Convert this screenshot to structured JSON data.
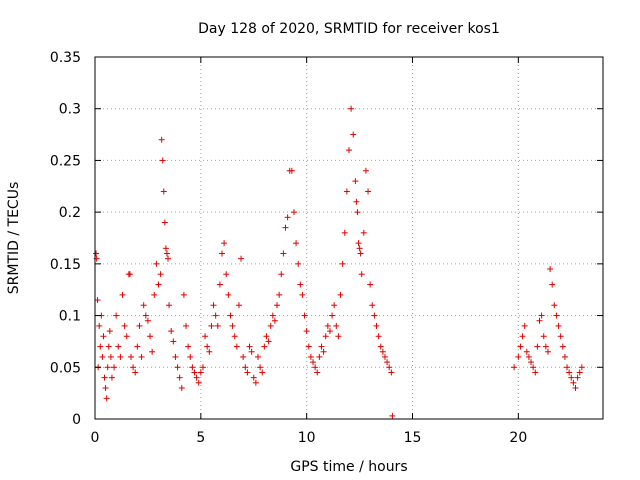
{
  "chart_data": {
    "type": "scatter",
    "title": "Day 128 of 2020, SRMTID for receiver kos1",
    "xlabel": "GPS time / hours",
    "ylabel": "SRMTID / TECUs",
    "xlim": [
      0,
      24
    ],
    "ylim": [
      0,
      0.35
    ],
    "xticks": [
      0,
      5,
      10,
      15,
      20
    ],
    "xtick_labels": [
      "0",
      "5",
      "10",
      "15",
      "20"
    ],
    "yticks": [
      0,
      0.05,
      0.1,
      0.15,
      0.2,
      0.25,
      0.3,
      0.35
    ],
    "ytick_labels": [
      "0",
      "0.05",
      "0.1",
      "0.15",
      "0.2",
      "0.25",
      "0.3",
      "0.35"
    ],
    "grid": true,
    "marker": "+",
    "series_color": "#e00000",
    "series": [
      {
        "name": "kos1",
        "x": [
          0.05,
          0.08,
          0.12,
          0.15,
          0.2,
          0.25,
          0.3,
          0.35,
          0.4,
          0.45,
          0.5,
          0.55,
          0.6,
          0.65,
          0.7,
          0.75,
          0.8,
          0.9,
          1.0,
          1.1,
          1.2,
          1.3,
          1.4,
          1.5,
          1.6,
          1.65,
          1.7,
          1.8,
          1.9,
          2.0,
          2.1,
          2.2,
          2.3,
          2.4,
          2.5,
          2.6,
          2.7,
          2.8,
          2.9,
          3.0,
          3.1,
          3.15,
          3.2,
          3.25,
          3.3,
          3.35,
          3.4,
          3.45,
          3.5,
          3.6,
          3.7,
          3.8,
          3.9,
          4.0,
          4.1,
          4.2,
          4.3,
          4.4,
          4.5,
          4.6,
          4.7,
          4.8,
          4.9,
          5.0,
          5.1,
          5.2,
          5.3,
          5.4,
          5.5,
          5.6,
          5.7,
          5.8,
          5.9,
          6.0,
          6.1,
          6.2,
          6.3,
          6.4,
          6.5,
          6.6,
          6.7,
          6.8,
          6.9,
          7.0,
          7.1,
          7.2,
          7.3,
          7.4,
          7.5,
          7.6,
          7.7,
          7.8,
          7.9,
          8.0,
          8.1,
          8.2,
          8.3,
          8.4,
          8.5,
          8.6,
          8.7,
          8.8,
          8.9,
          9.0,
          9.1,
          9.2,
          9.3,
          9.4,
          9.5,
          9.6,
          9.7,
          9.8,
          9.9,
          10.0,
          10.1,
          10.2,
          10.3,
          10.4,
          10.5,
          10.6,
          10.7,
          10.8,
          10.9,
          11.0,
          11.1,
          11.2,
          11.3,
          11.4,
          11.5,
          11.6,
          11.7,
          11.8,
          11.9,
          12.0,
          12.1,
          12.2,
          12.3,
          12.35,
          12.4,
          12.45,
          12.5,
          12.55,
          12.6,
          12.7,
          12.8,
          12.9,
          13.0,
          13.1,
          13.2,
          13.3,
          13.4,
          13.5,
          13.6,
          13.7,
          13.8,
          13.9,
          14.0,
          14.05,
          19.8,
          20.0,
          20.1,
          20.2,
          20.3,
          20.4,
          20.5,
          20.6,
          20.7,
          20.8,
          20.9,
          21.0,
          21.1,
          21.2,
          21.3,
          21.4,
          21.5,
          21.6,
          21.7,
          21.8,
          21.9,
          22.0,
          22.1,
          22.2,
          22.3,
          22.4,
          22.5,
          22.6,
          22.7,
          22.8,
          22.9,
          23.0
        ],
        "y": [
          0.16,
          0.155,
          0.115,
          0.05,
          0.09,
          0.07,
          0.1,
          0.06,
          0.08,
          0.04,
          0.03,
          0.02,
          0.05,
          0.07,
          0.085,
          0.06,
          0.04,
          0.05,
          0.1,
          0.07,
          0.06,
          0.12,
          0.09,
          0.08,
          0.14,
          0.14,
          0.06,
          0.05,
          0.045,
          0.07,
          0.09,
          0.06,
          0.11,
          0.1,
          0.095,
          0.08,
          0.065,
          0.12,
          0.15,
          0.13,
          0.14,
          0.27,
          0.25,
          0.22,
          0.19,
          0.165,
          0.16,
          0.155,
          0.11,
          0.085,
          0.075,
          0.06,
          0.05,
          0.04,
          0.03,
          0.12,
          0.09,
          0.07,
          0.06,
          0.05,
          0.045,
          0.04,
          0.035,
          0.045,
          0.05,
          0.08,
          0.07,
          0.065,
          0.09,
          0.11,
          0.1,
          0.09,
          0.13,
          0.16,
          0.17,
          0.14,
          0.12,
          0.1,
          0.09,
          0.08,
          0.07,
          0.11,
          0.155,
          0.06,
          0.05,
          0.045,
          0.07,
          0.065,
          0.04,
          0.035,
          0.06,
          0.05,
          0.045,
          0.07,
          0.08,
          0.075,
          0.09,
          0.1,
          0.095,
          0.11,
          0.12,
          0.14,
          0.16,
          0.185,
          0.195,
          0.24,
          0.24,
          0.2,
          0.17,
          0.15,
          0.13,
          0.12,
          0.1,
          0.085,
          0.07,
          0.06,
          0.055,
          0.05,
          0.045,
          0.06,
          0.07,
          0.065,
          0.08,
          0.09,
          0.085,
          0.1,
          0.11,
          0.09,
          0.08,
          0.12,
          0.15,
          0.18,
          0.22,
          0.26,
          0.3,
          0.275,
          0.23,
          0.21,
          0.2,
          0.17,
          0.165,
          0.16,
          0.14,
          0.18,
          0.24,
          0.22,
          0.13,
          0.11,
          0.1,
          0.09,
          0.08,
          0.07,
          0.065,
          0.06,
          0.055,
          0.05,
          0.045,
          0.003,
          0.05,
          0.06,
          0.07,
          0.08,
          0.09,
          0.065,
          0.06,
          0.055,
          0.05,
          0.045,
          0.07,
          0.095,
          0.1,
          0.08,
          0.07,
          0.065,
          0.145,
          0.13,
          0.11,
          0.1,
          0.09,
          0.08,
          0.07,
          0.06,
          0.05,
          0.045,
          0.04,
          0.035,
          0.03,
          0.04,
          0.045,
          0.05
        ]
      }
    ]
  }
}
